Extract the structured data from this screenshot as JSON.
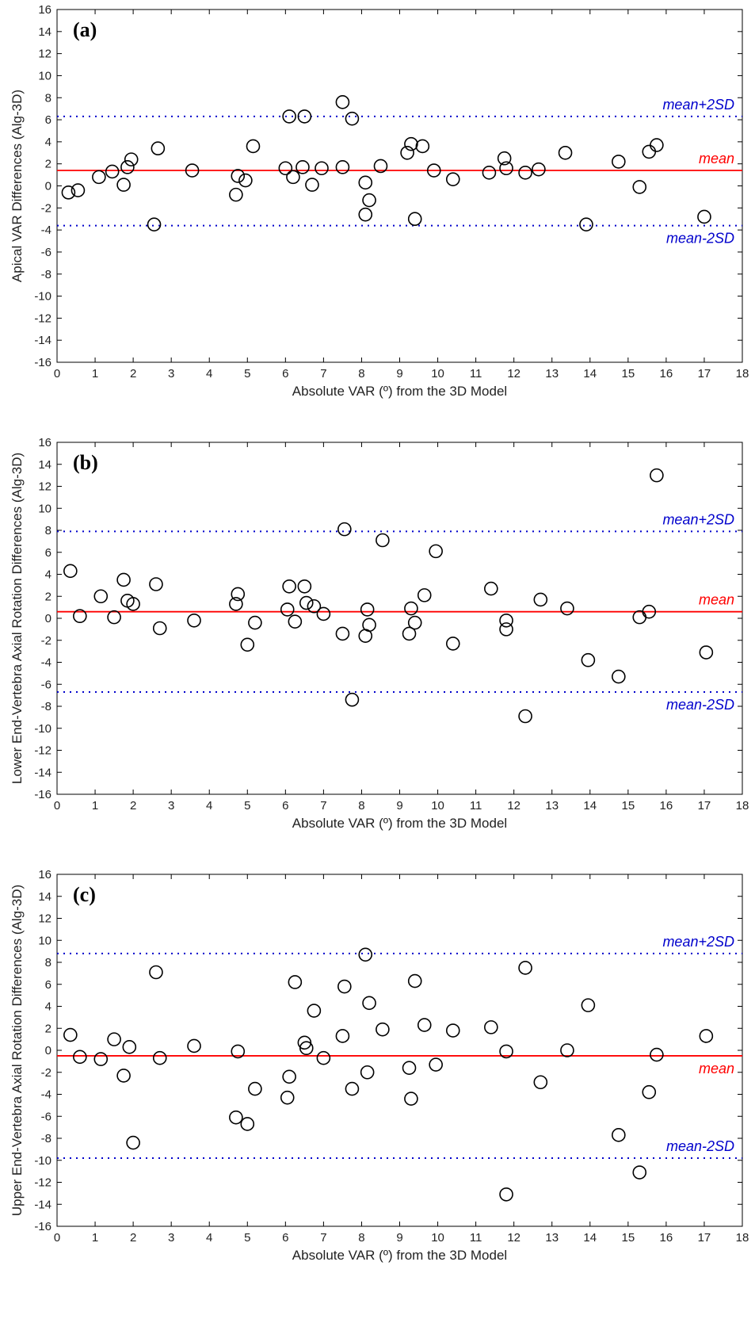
{
  "chart_data": [
    {
      "type": "scatter",
      "panel_label": "(a)",
      "xlabel": "Absolute VAR (º) from the 3D Model",
      "ylabel": "Apical VAR Differences (Alg-3D)",
      "xlim": [
        0,
        18
      ],
      "ylim": [
        -16,
        16
      ],
      "xticks": [
        0,
        1,
        2,
        3,
        4,
        5,
        6,
        7,
        8,
        9,
        10,
        11,
        12,
        13,
        14,
        15,
        16,
        17,
        18
      ],
      "yticks": [
        -16,
        -14,
        -12,
        -10,
        -8,
        -6,
        -4,
        -2,
        0,
        2,
        4,
        6,
        8,
        10,
        12,
        14,
        16
      ],
      "reference_lines": [
        {
          "label": "mean+2SD",
          "value": 6.3,
          "style": "dotted",
          "color": "#0000cc",
          "label_pos": "above"
        },
        {
          "label": "mean",
          "value": 1.4,
          "style": "solid",
          "color": "#ff0000",
          "label_pos": "above"
        },
        {
          "label": "mean-2SD",
          "value": -3.6,
          "style": "dotted",
          "color": "#0000cc",
          "label_pos": "below"
        }
      ],
      "points": [
        [
          0.3,
          -0.6
        ],
        [
          0.55,
          -0.4
        ],
        [
          1.1,
          0.8
        ],
        [
          1.45,
          1.3
        ],
        [
          1.75,
          0.1
        ],
        [
          1.85,
          1.7
        ],
        [
          1.95,
          2.4
        ],
        [
          2.55,
          -3.5
        ],
        [
          2.65,
          3.4
        ],
        [
          3.55,
          1.4
        ],
        [
          4.7,
          -0.8
        ],
        [
          4.75,
          0.9
        ],
        [
          4.95,
          0.5
        ],
        [
          5.15,
          3.6
        ],
        [
          6.0,
          1.6
        ],
        [
          6.1,
          6.3
        ],
        [
          6.2,
          0.8
        ],
        [
          6.45,
          1.7
        ],
        [
          6.5,
          6.3
        ],
        [
          6.7,
          0.1
        ],
        [
          6.95,
          1.6
        ],
        [
          7.5,
          1.7
        ],
        [
          7.5,
          7.6
        ],
        [
          7.75,
          6.1
        ],
        [
          8.1,
          -2.6
        ],
        [
          8.1,
          0.3
        ],
        [
          8.2,
          -1.3
        ],
        [
          8.5,
          1.8
        ],
        [
          9.2,
          3.0
        ],
        [
          9.3,
          3.8
        ],
        [
          9.4,
          -3.0
        ],
        [
          9.6,
          3.6
        ],
        [
          9.9,
          1.4
        ],
        [
          10.4,
          0.6
        ],
        [
          11.35,
          1.2
        ],
        [
          11.75,
          2.5
        ],
        [
          11.8,
          1.6
        ],
        [
          12.3,
          1.2
        ],
        [
          12.65,
          1.5
        ],
        [
          13.35,
          3.0
        ],
        [
          13.9,
          -3.5
        ],
        [
          14.75,
          2.2
        ],
        [
          15.3,
          -0.1
        ],
        [
          15.55,
          3.1
        ],
        [
          15.75,
          3.7
        ],
        [
          17.0,
          -2.8
        ]
      ]
    },
    {
      "type": "scatter",
      "panel_label": "(b)",
      "xlabel": "Absolute VAR (º) from the 3D Model",
      "ylabel": "Lower End-Vertebra Axial Rotation Differences (Alg-3D)",
      "xlim": [
        0,
        18
      ],
      "ylim": [
        -16,
        16
      ],
      "xticks": [
        0,
        1,
        2,
        3,
        4,
        5,
        6,
        7,
        8,
        9,
        10,
        11,
        12,
        13,
        14,
        15,
        16,
        17,
        18
      ],
      "yticks": [
        -16,
        -14,
        -12,
        -10,
        -8,
        -6,
        -4,
        -2,
        0,
        2,
        4,
        6,
        8,
        10,
        12,
        14,
        16
      ],
      "reference_lines": [
        {
          "label": "mean+2SD",
          "value": 7.9,
          "style": "dotted",
          "color": "#0000cc",
          "label_pos": "above"
        },
        {
          "label": "mean",
          "value": 0.6,
          "style": "solid",
          "color": "#ff0000",
          "label_pos": "above"
        },
        {
          "label": "mean-2SD",
          "value": -6.7,
          "style": "dotted",
          "color": "#0000cc",
          "label_pos": "below"
        }
      ],
      "points": [
        [
          0.35,
          4.3
        ],
        [
          0.6,
          0.2
        ],
        [
          1.15,
          2.0
        ],
        [
          1.5,
          0.1
        ],
        [
          1.75,
          3.5
        ],
        [
          1.85,
          1.6
        ],
        [
          2.0,
          1.3
        ],
        [
          2.6,
          3.1
        ],
        [
          2.7,
          -0.9
        ],
        [
          3.6,
          -0.2
        ],
        [
          4.7,
          1.3
        ],
        [
          4.75,
          2.2
        ],
        [
          5.0,
          -2.4
        ],
        [
          5.2,
          -0.4
        ],
        [
          6.05,
          0.8
        ],
        [
          6.1,
          2.9
        ],
        [
          6.25,
          -0.3
        ],
        [
          6.5,
          2.9
        ],
        [
          6.55,
          1.4
        ],
        [
          6.75,
          1.1
        ],
        [
          7.0,
          0.4
        ],
        [
          7.5,
          -1.4
        ],
        [
          7.55,
          8.1
        ],
        [
          7.75,
          -7.4
        ],
        [
          8.1,
          -1.6
        ],
        [
          8.15,
          0.8
        ],
        [
          8.2,
          -0.6
        ],
        [
          8.55,
          7.1
        ],
        [
          9.25,
          -1.4
        ],
        [
          9.3,
          0.9
        ],
        [
          9.4,
          -0.4
        ],
        [
          9.65,
          2.1
        ],
        [
          9.95,
          6.1
        ],
        [
          10.4,
          -2.3
        ],
        [
          11.4,
          2.7
        ],
        [
          11.8,
          -0.2
        ],
        [
          11.8,
          -1.0
        ],
        [
          12.3,
          -8.9
        ],
        [
          12.7,
          1.7
        ],
        [
          13.4,
          0.9
        ],
        [
          13.95,
          -3.8
        ],
        [
          14.75,
          -5.3
        ],
        [
          15.3,
          0.1
        ],
        [
          15.55,
          0.6
        ],
        [
          15.75,
          13.0
        ],
        [
          17.05,
          -3.1
        ]
      ]
    },
    {
      "type": "scatter",
      "panel_label": "(c)",
      "xlabel": "Absolute VAR (º) from the 3D Model",
      "ylabel": "Upper End-Vertebra Axial Rotation Differences (Alg-3D)",
      "xlim": [
        0,
        18
      ],
      "ylim": [
        -16,
        16
      ],
      "xticks": [
        0,
        1,
        2,
        3,
        4,
        5,
        6,
        7,
        8,
        9,
        10,
        11,
        12,
        13,
        14,
        15,
        16,
        17,
        18
      ],
      "yticks": [
        -16,
        -14,
        -12,
        -10,
        -8,
        -6,
        -4,
        -2,
        0,
        2,
        4,
        6,
        8,
        10,
        12,
        14,
        16
      ],
      "reference_lines": [
        {
          "label": "mean+2SD",
          "value": 8.8,
          "style": "dotted",
          "color": "#0000cc",
          "label_pos": "above"
        },
        {
          "label": "mean",
          "value": -0.5,
          "style": "solid",
          "color": "#ff0000",
          "label_pos": "below"
        },
        {
          "label": "mean-2SD",
          "value": -9.8,
          "style": "dotted",
          "color": "#0000cc",
          "label_pos": "above"
        }
      ],
      "points": [
        [
          0.35,
          1.4
        ],
        [
          0.6,
          -0.6
        ],
        [
          1.15,
          -0.8
        ],
        [
          1.5,
          1.0
        ],
        [
          1.75,
          -2.3
        ],
        [
          1.9,
          0.3
        ],
        [
          2.0,
          -8.4
        ],
        [
          2.6,
          7.1
        ],
        [
          2.7,
          -0.7
        ],
        [
          3.6,
          0.4
        ],
        [
          4.7,
          -6.1
        ],
        [
          4.75,
          -0.1
        ],
        [
          5.0,
          -6.7
        ],
        [
          5.2,
          -3.5
        ],
        [
          6.05,
          -4.3
        ],
        [
          6.1,
          -2.4
        ],
        [
          6.25,
          6.2
        ],
        [
          6.5,
          0.7
        ],
        [
          6.55,
          0.2
        ],
        [
          6.75,
          3.6
        ],
        [
          7.0,
          -0.7
        ],
        [
          7.5,
          1.3
        ],
        [
          7.55,
          5.8
        ],
        [
          7.75,
          -3.5
        ],
        [
          8.1,
          8.7
        ],
        [
          8.15,
          -2.0
        ],
        [
          8.2,
          4.3
        ],
        [
          8.55,
          1.9
        ],
        [
          9.25,
          -1.6
        ],
        [
          9.3,
          -4.4
        ],
        [
          9.4,
          6.3
        ],
        [
          9.65,
          2.3
        ],
        [
          9.95,
          -1.3
        ],
        [
          10.4,
          1.8
        ],
        [
          11.4,
          2.1
        ],
        [
          11.8,
          -0.1
        ],
        [
          11.8,
          -13.1
        ],
        [
          12.3,
          7.5
        ],
        [
          12.7,
          -2.9
        ],
        [
          13.4,
          0.0
        ],
        [
          13.95,
          4.1
        ],
        [
          14.75,
          -7.7
        ],
        [
          15.3,
          -11.1
        ],
        [
          15.55,
          -3.8
        ],
        [
          15.75,
          -0.4
        ],
        [
          17.05,
          1.3
        ]
      ]
    }
  ]
}
